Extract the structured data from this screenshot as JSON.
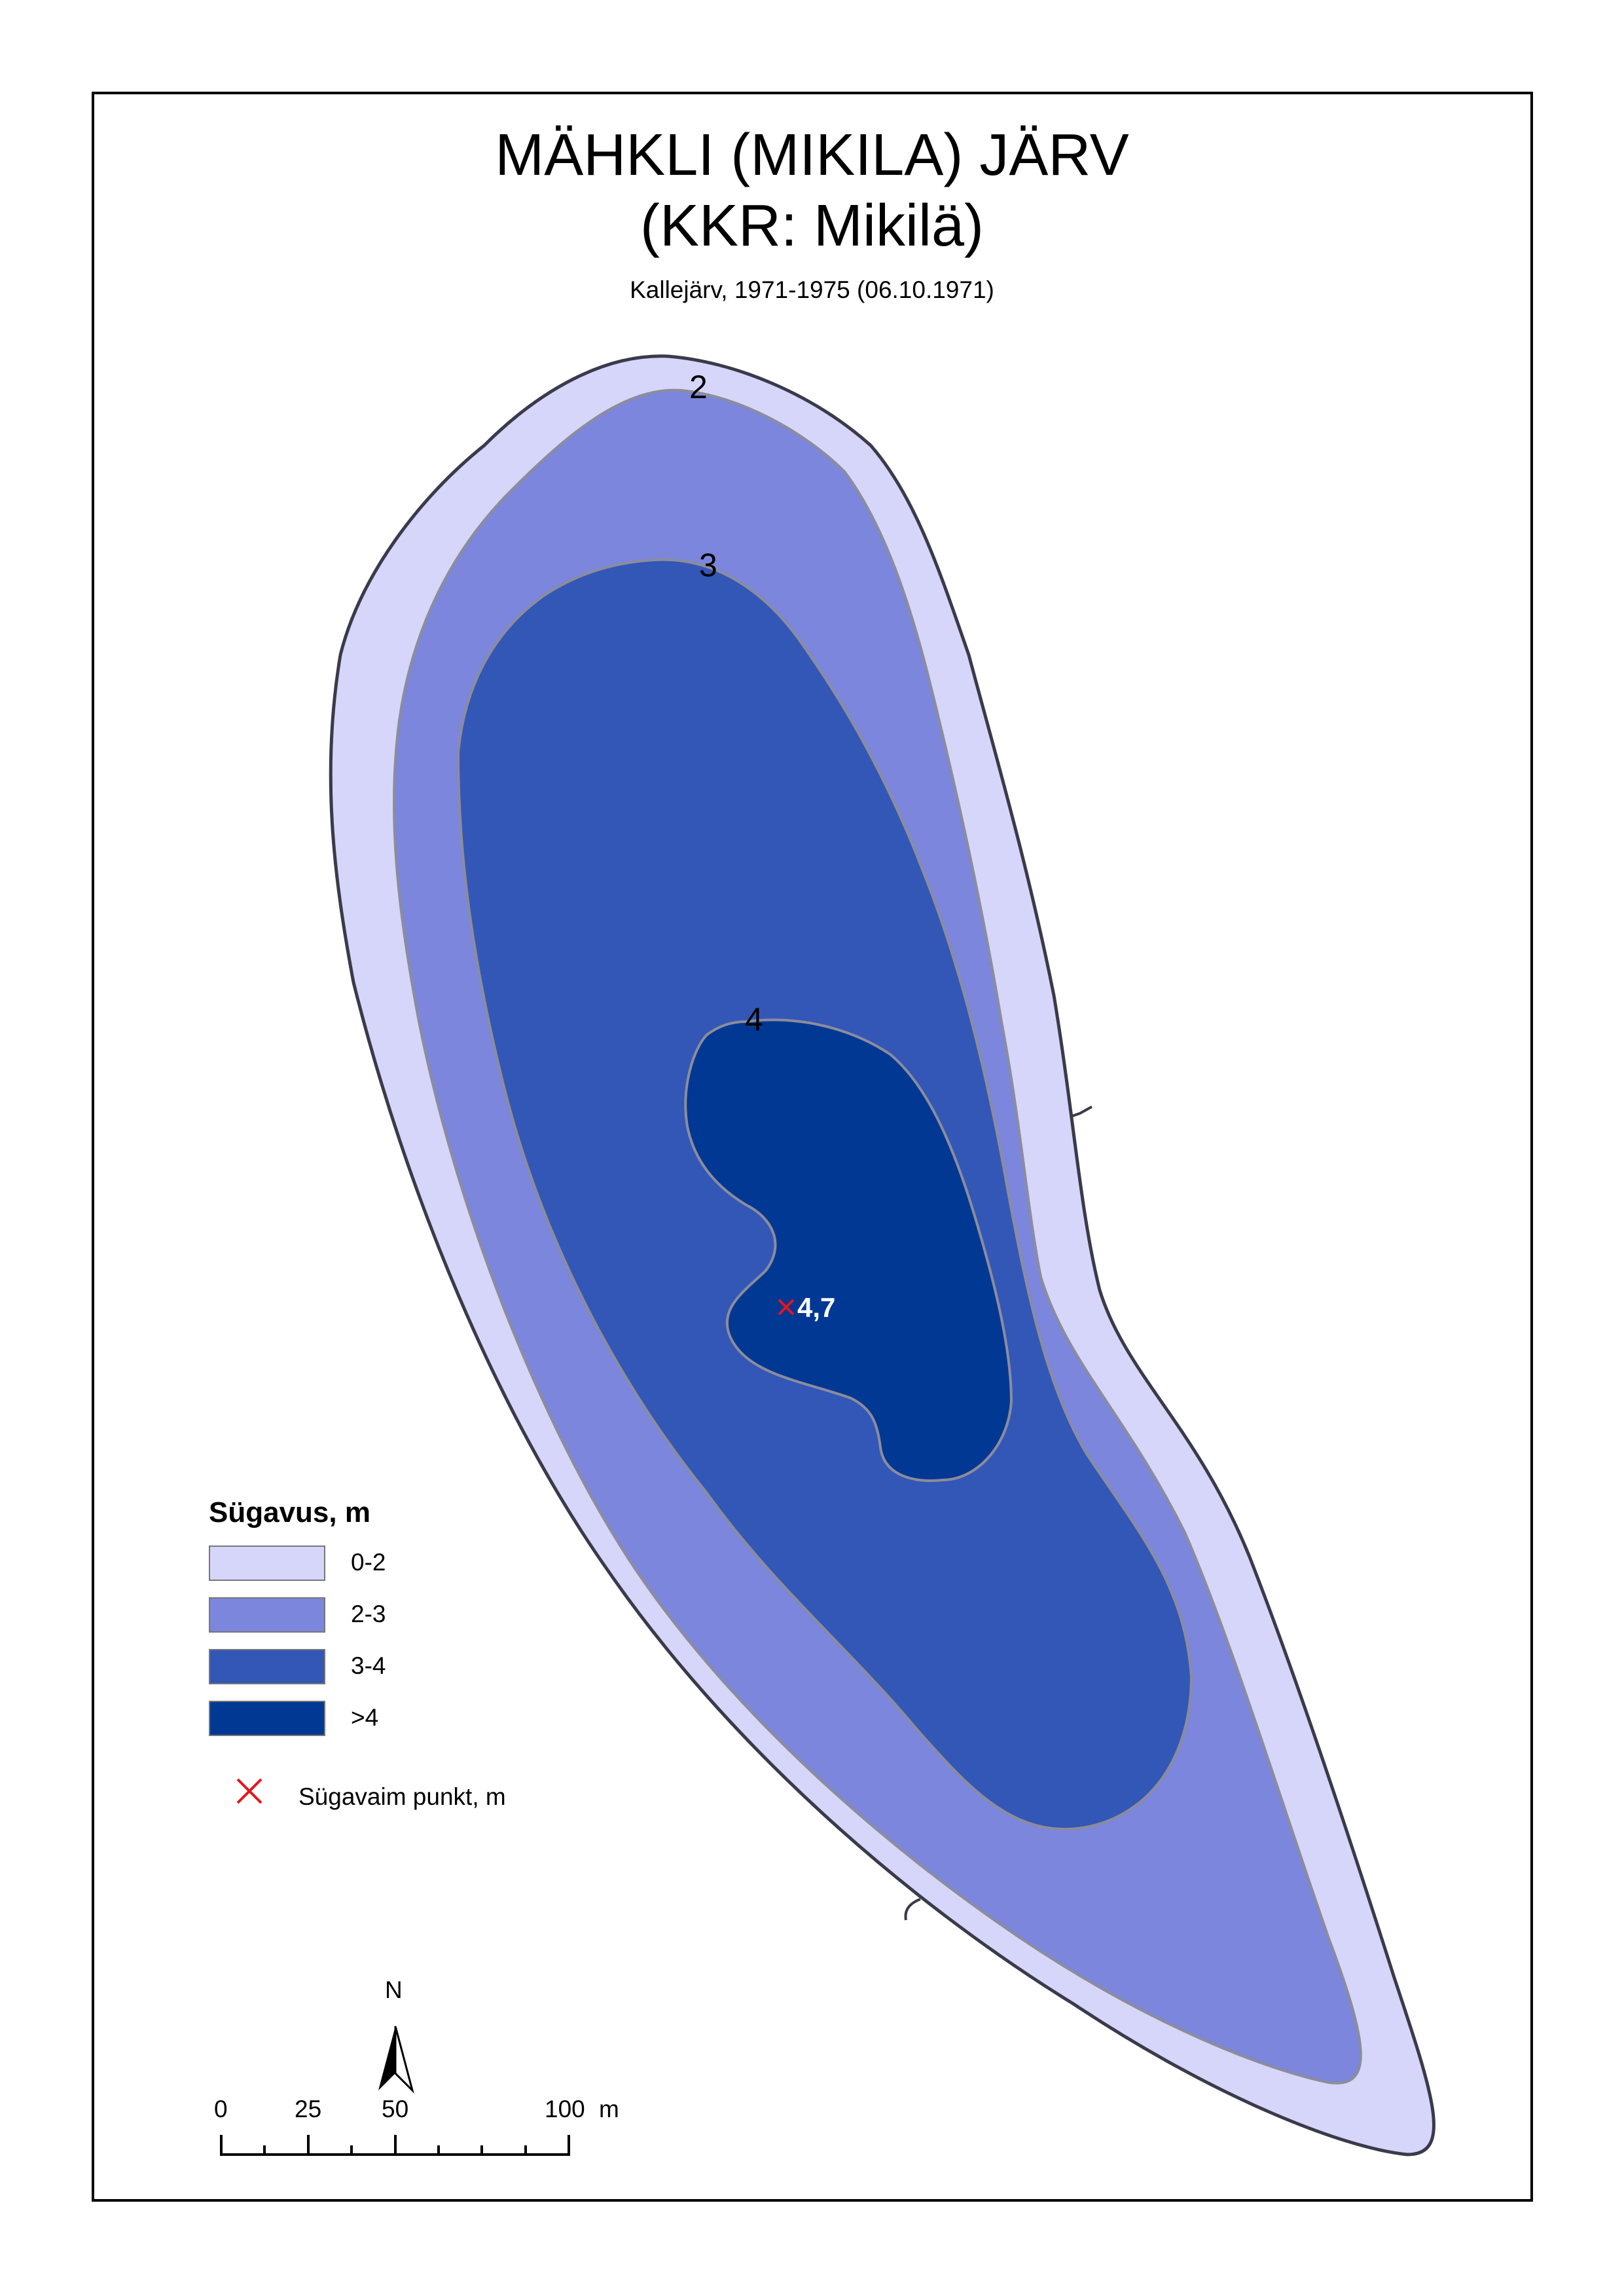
{
  "title": {
    "line1": "MÄHKLI (MIKILA) JÄRV",
    "line2": "(KKR: Mikilä)"
  },
  "subtitle": "Kallejärv, 1971-1975 (06.10.1971)",
  "contour_labels": [
    "2",
    "3",
    "4"
  ],
  "deepest_point": {
    "value": "4,7",
    "marker_color": "#e8141b"
  },
  "legend": {
    "title": "Sügavus, m",
    "items": [
      {
        "label": "0-2",
        "color": "#d6d6fa"
      },
      {
        "label": "2-3",
        "color": "#7b86dc"
      },
      {
        "label": "3-4",
        "color": "#3357b7"
      },
      {
        "label": ">4",
        "color": "#003893"
      }
    ],
    "deepest_label": "Sügavaim punkt, m"
  },
  "north_arrow": {
    "label": "N"
  },
  "scale_bar": {
    "ticks": [
      "0",
      "25",
      "50",
      "100"
    ],
    "unit": "m"
  },
  "colors": {
    "shoreline": "#3a3a4a",
    "contour_line": "#8c8c9c"
  }
}
